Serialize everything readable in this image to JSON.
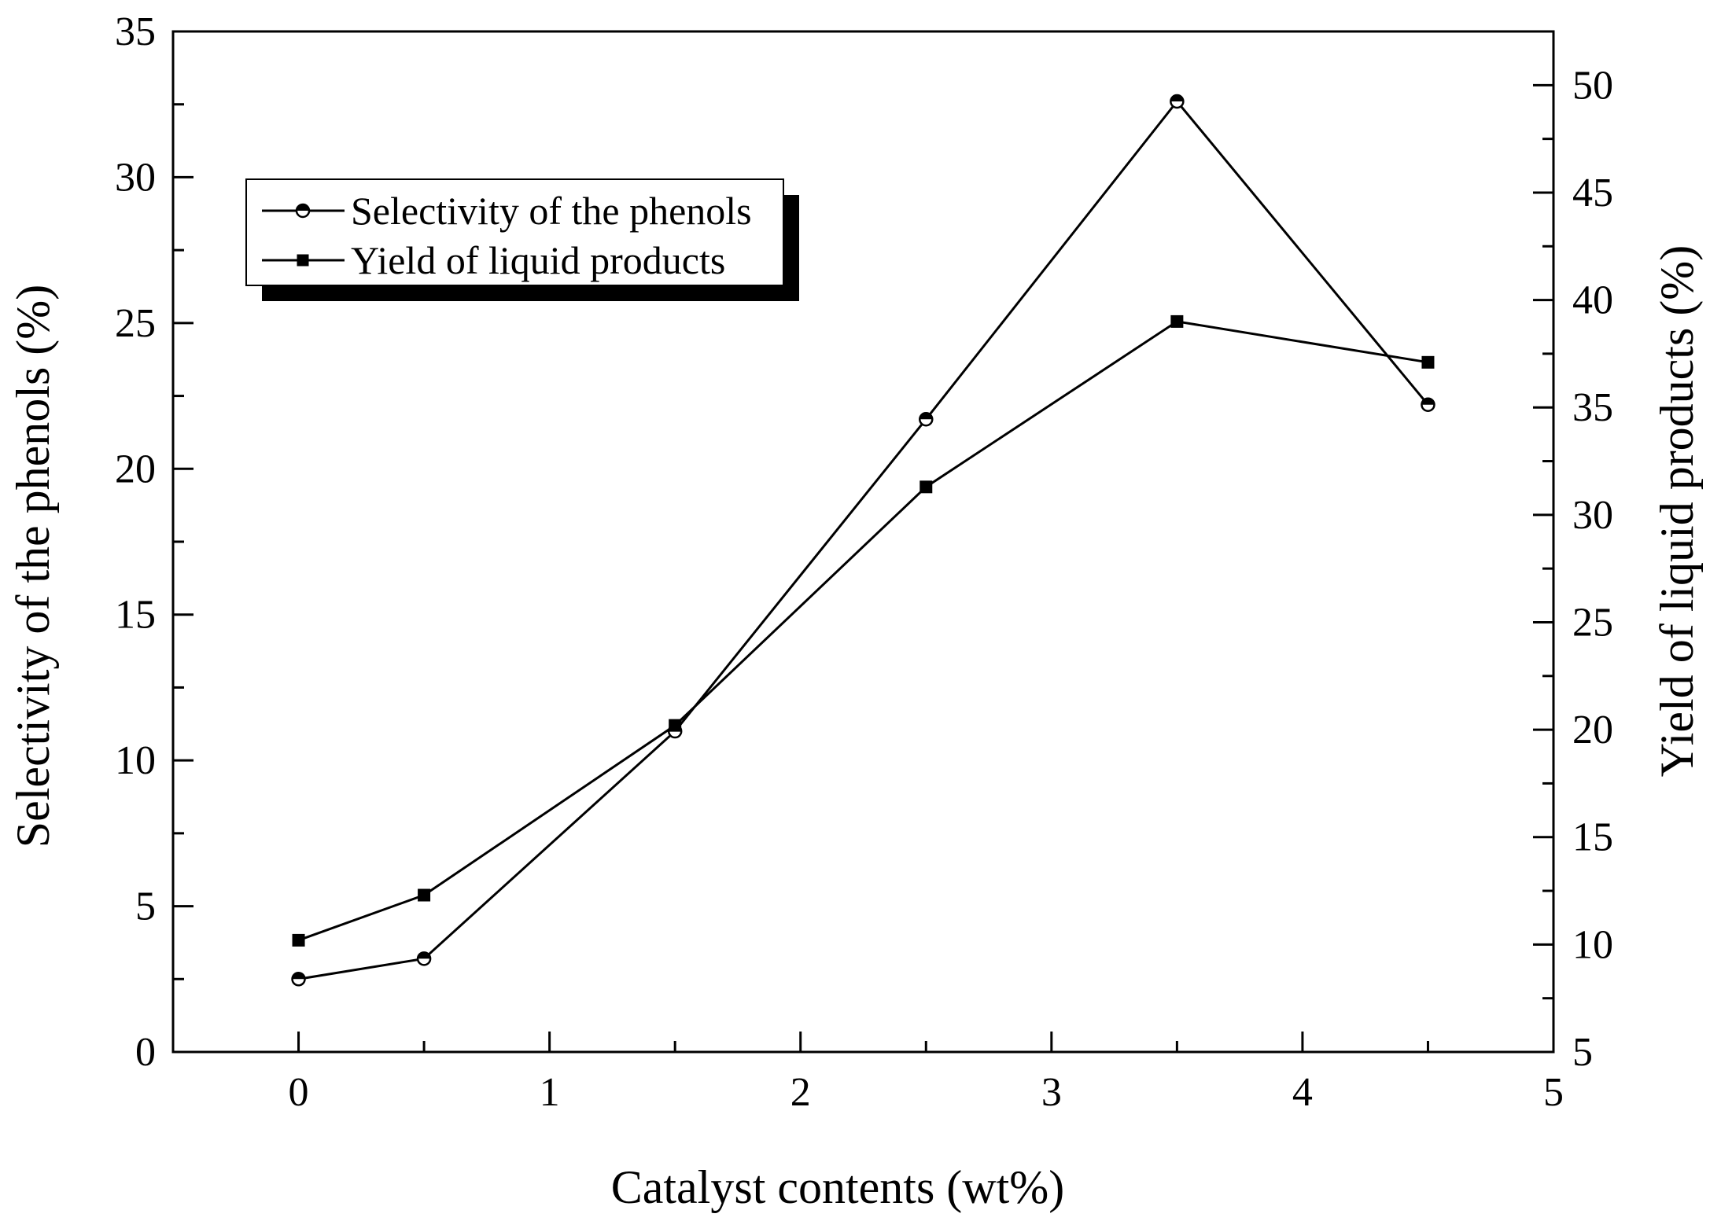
{
  "chart_data": {
    "type": "line",
    "xlabel": "Catalyst contents (wt%)",
    "ylabel_left": "Selectivity of the phenols (%)",
    "ylabel_right": "Yield of liquid products (%)",
    "xlim": [
      -0.5,
      5
    ],
    "ylim_left": [
      0,
      35
    ],
    "ylim_right": [
      5,
      52.5
    ],
    "x_ticks": [
      "0",
      "1",
      "2",
      "3",
      "4",
      "5"
    ],
    "y_left_ticks": [
      "0",
      "5",
      "10",
      "15",
      "20",
      "25",
      "30",
      "35"
    ],
    "y_right_ticks": [
      "5",
      "10",
      "15",
      "20",
      "25",
      "30",
      "35",
      "40",
      "45",
      "50"
    ],
    "x": [
      0,
      0.5,
      1.5,
      2.5,
      3.5,
      4.5
    ],
    "series": [
      {
        "name": "Selectivity of the phenols",
        "axis": "left",
        "marker": "half-filled-circle",
        "values": [
          2.5,
          3.2,
          11.0,
          21.7,
          32.6,
          22.2
        ]
      },
      {
        "name": "Yield of liquid products",
        "axis": "right",
        "marker": "filled-square",
        "values": [
          10.2,
          12.3,
          20.2,
          31.3,
          39.0,
          37.1
        ]
      }
    ],
    "legend_position": "top-left",
    "grid": false,
    "colors": {
      "line": "#000000",
      "background": "#ffffff"
    }
  }
}
